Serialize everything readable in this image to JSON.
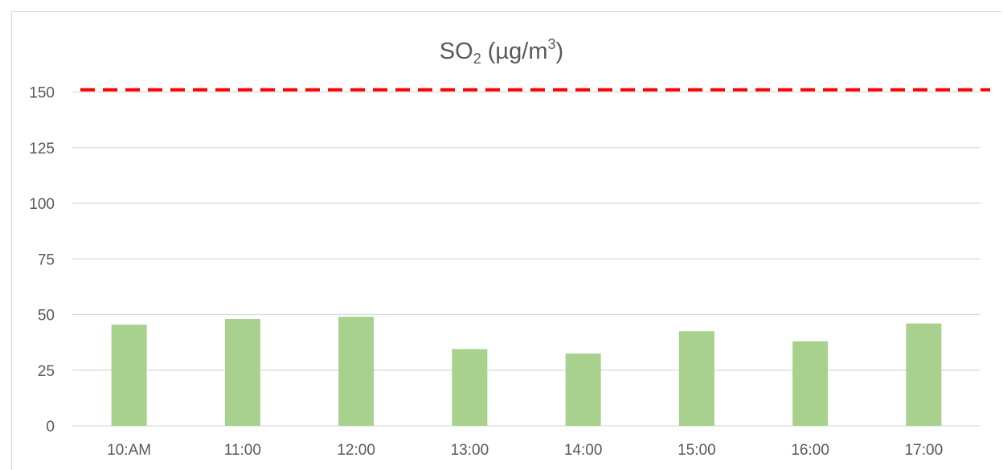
{
  "chart_data": {
    "type": "bar",
    "title": {
      "base": "SO",
      "subscript": "2",
      "middle": " (µg/m",
      "superscript": "3",
      "end": ")"
    },
    "categories": [
      "10:AM",
      "11:00",
      "12:00",
      "13:00",
      "14:00",
      "15:00",
      "16:00",
      "17:00"
    ],
    "series": [
      {
        "values": [
          45.5,
          48,
          49,
          34.5,
          32.5,
          42.5,
          38,
          46
        ],
        "color": "#a9d18e"
      }
    ],
    "reference_line": {
      "value": 151,
      "color": "#ff0000",
      "style": "dashed"
    },
    "yticks": [
      0,
      25,
      50,
      75,
      100,
      125,
      150
    ],
    "ylim": [
      0,
      155
    ],
    "grid": true,
    "gridline_color": "#d9d9d9",
    "legend": "none",
    "xlabel": "",
    "ylabel": ""
  }
}
